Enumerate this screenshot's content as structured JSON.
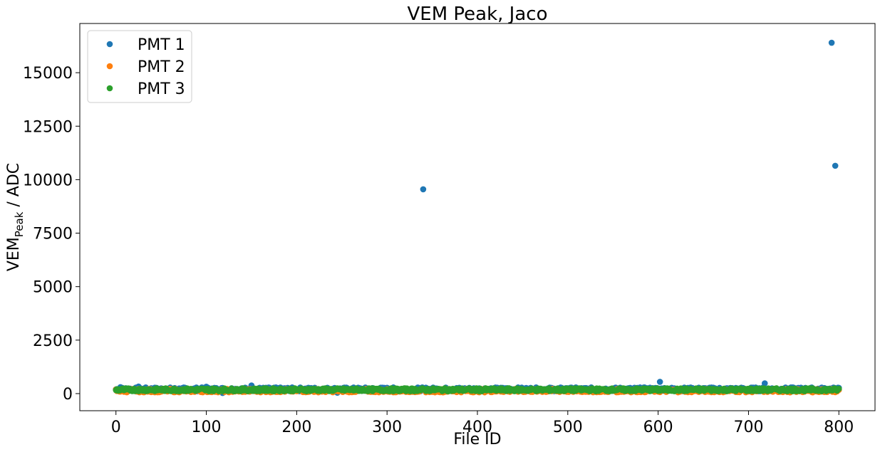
{
  "chart_data": {
    "type": "scatter",
    "title": "VEM Peak, Jaco",
    "xlabel": "File ID",
    "ylabel_main": "VEM",
    "ylabel_sub": "Peak",
    "ylabel_rest": " / ADC",
    "xlim": [
      -40,
      840
    ],
    "ylim": [
      -800,
      17300
    ],
    "xticks": [
      0,
      100,
      200,
      300,
      400,
      500,
      600,
      700,
      800
    ],
    "yticks": [
      0,
      2500,
      5000,
      7500,
      10000,
      12500,
      15000
    ],
    "grid": false,
    "legend_position": "top-left",
    "series": [
      {
        "name": "PMT 1",
        "color": "#1f77b4",
        "points": [
          [
            340,
            9550
          ],
          [
            792,
            16400
          ],
          [
            796,
            10650
          ],
          [
            602,
            550
          ],
          [
            718,
            480
          ],
          [
            150,
            380
          ],
          [
            25,
            330
          ],
          [
            100,
            320
          ],
          [
            5,
            300
          ],
          [
            500,
            250
          ],
          [
            245,
            40
          ],
          [
            118,
            30
          ]
        ],
        "band": {
          "x_range": [
            0,
            800
          ],
          "y_center": 200,
          "y_spread": 90
        }
      },
      {
        "name": "PMT 2",
        "color": "#ff7f0e",
        "points": [],
        "band": {
          "x_range": [
            0,
            800
          ],
          "y_center": 140,
          "y_spread": 80
        }
      },
      {
        "name": "PMT 3",
        "color": "#2ca02c",
        "points": [],
        "band": {
          "x_range": [
            0,
            800
          ],
          "y_center": 180,
          "y_spread": 70
        }
      }
    ]
  }
}
